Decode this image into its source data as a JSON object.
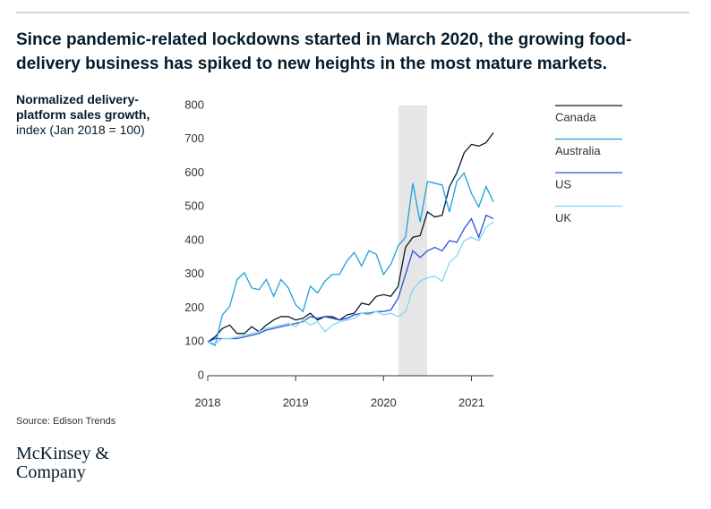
{
  "chart_data": {
    "type": "line",
    "title": "Since pandemic-related lockdowns started in March 2020, the growing food-delivery business has spiked to new heights in the most mature markets.",
    "ylabel": "Normalized delivery-platform sales growth,",
    "ylabel_unit": "index (Jan 2018 = 100)",
    "source": "Source: Edison Trends",
    "categories": [
      "2018",
      null,
      null,
      null,
      null,
      null,
      null,
      null,
      null,
      null,
      null,
      null,
      "2019",
      null,
      null,
      null,
      null,
      null,
      null,
      null,
      null,
      null,
      null,
      null,
      "2020",
      null,
      null,
      null,
      null,
      null,
      null,
      null,
      null,
      null,
      null,
      null,
      "2021",
      null,
      null,
      null
    ],
    "ylim": [
      0,
      800
    ],
    "yticks": [
      0,
      100,
      200,
      300,
      400,
      500,
      600,
      700,
      800
    ],
    "grid": false,
    "series": [
      {
        "name": "Canada",
        "color": "#051c2c",
        "values": [
          100,
          115,
          140,
          150,
          125,
          125,
          145,
          130,
          150,
          165,
          175,
          175,
          165,
          170,
          185,
          165,
          175,
          175,
          165,
          180,
          185,
          215,
          210,
          235,
          240,
          235,
          265,
          380,
          410,
          415,
          485,
          470,
          475,
          560,
          600,
          660,
          685,
          680,
          690,
          720
        ]
      },
      {
        "name": "Australia",
        "color": "#1f9fe0",
        "values": [
          100,
          90,
          180,
          205,
          285,
          305,
          260,
          255,
          285,
          235,
          285,
          260,
          210,
          190,
          265,
          245,
          280,
          300,
          300,
          340,
          365,
          325,
          370,
          360,
          300,
          330,
          385,
          410,
          570,
          455,
          575,
          570,
          565,
          485,
          575,
          600,
          540,
          500,
          560,
          515
        ]
      },
      {
        "name": "US",
        "color": "#2f4fd8",
        "values": [
          100,
          110,
          110,
          110,
          110,
          115,
          120,
          125,
          135,
          140,
          145,
          150,
          155,
          160,
          175,
          170,
          175,
          170,
          165,
          170,
          180,
          185,
          185,
          190,
          190,
          195,
          230,
          300,
          370,
          350,
          370,
          380,
          370,
          400,
          395,
          435,
          465,
          410,
          475,
          465
        ]
      },
      {
        "name": "UK",
        "color": "#7fd8f2",
        "values": [
          100,
          95,
          110,
          110,
          115,
          120,
          125,
          130,
          140,
          145,
          150,
          155,
          145,
          165,
          150,
          160,
          130,
          150,
          160,
          165,
          170,
          185,
          180,
          190,
          180,
          185,
          175,
          190,
          255,
          280,
          290,
          295,
          280,
          335,
          355,
          400,
          410,
          400,
          440,
          455
        ]
      }
    ]
  },
  "logo": "McKinsey & Company"
}
